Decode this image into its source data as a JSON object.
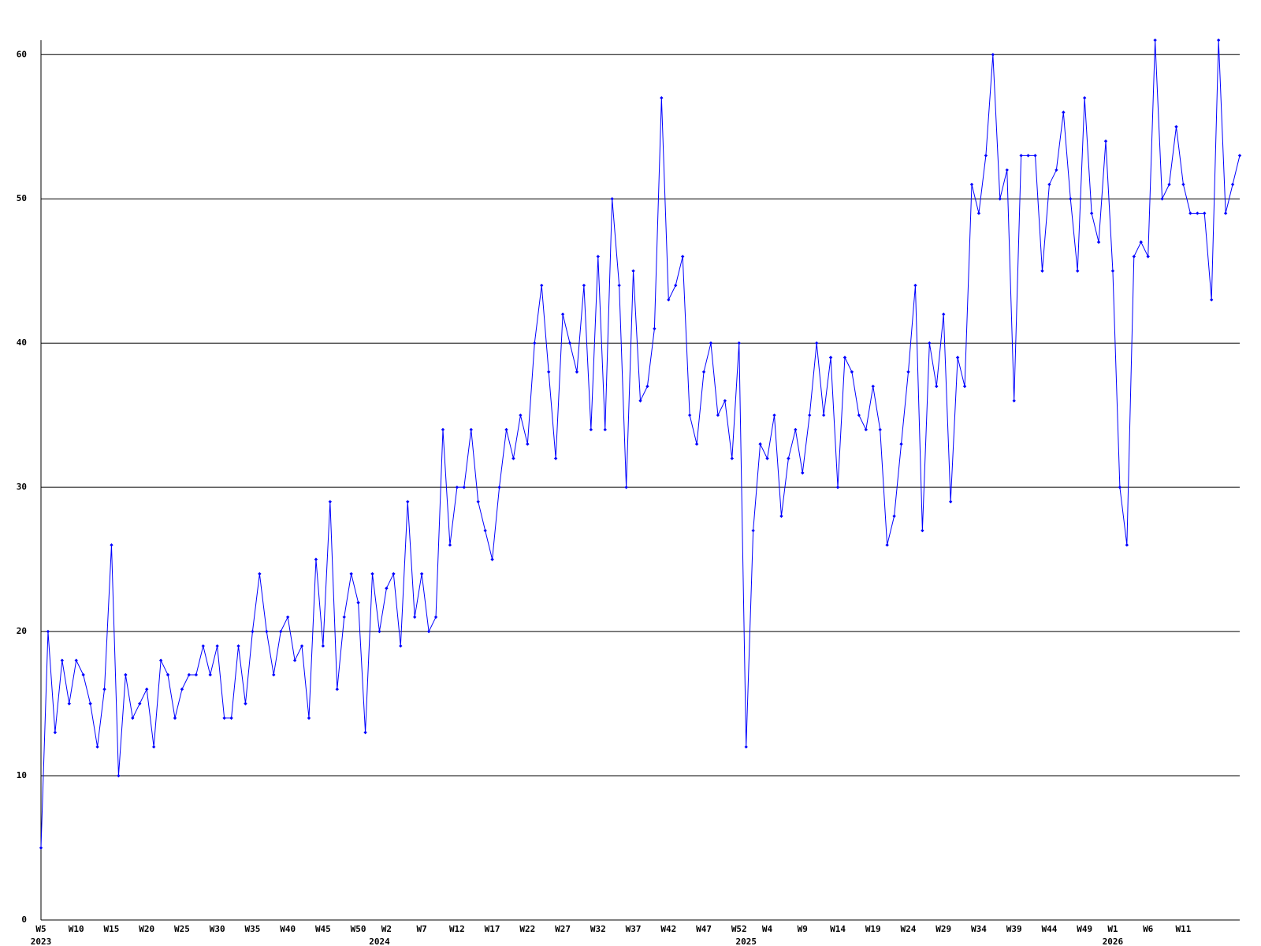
{
  "chart_data": {
    "type": "line",
    "categories": [
      "W5",
      null,
      null,
      null,
      null,
      "W10",
      null,
      null,
      null,
      null,
      "W15",
      null,
      null,
      null,
      null,
      "W20",
      null,
      null,
      null,
      null,
      "W25",
      null,
      null,
      null,
      null,
      "W30",
      null,
      null,
      null,
      null,
      "W35",
      null,
      null,
      null,
      null,
      "W40",
      null,
      null,
      null,
      null,
      "W45",
      null,
      null,
      null,
      null,
      "W50",
      null,
      null,
      null,
      "W2",
      null,
      null,
      null,
      null,
      "W7",
      null,
      null,
      null,
      null,
      "W12",
      null,
      null,
      null,
      null,
      "W17",
      null,
      null,
      null,
      null,
      "W22",
      null,
      null,
      null,
      null,
      "W27",
      null,
      null,
      null,
      null,
      "W32",
      null,
      null,
      null,
      null,
      "W37",
      null,
      null,
      null,
      null,
      "W42",
      null,
      null,
      null,
      null,
      "W47",
      null,
      null,
      null,
      null,
      "W52",
      null,
      null,
      null,
      "W4",
      null,
      null,
      null,
      null,
      "W9",
      null,
      null,
      null,
      null,
      "W14",
      null,
      null,
      null,
      null,
      "W19",
      null,
      null,
      null,
      null,
      "W24",
      null,
      null,
      null,
      null,
      "W29",
      null,
      null,
      null,
      null,
      "W34",
      null,
      null,
      null,
      null,
      "W39",
      null,
      null,
      null,
      null,
      "W44",
      null,
      null,
      null,
      null,
      "W49",
      null,
      null,
      null,
      "W1",
      null,
      null,
      null,
      null,
      "W6",
      null,
      null,
      null,
      null,
      "W11",
      null,
      null,
      null,
      null,
      null,
      null,
      null,
      null
    ],
    "year_labels": [
      {
        "category_index": 0,
        "label": "2023"
      },
      {
        "category_index": 48,
        "label": "2024"
      },
      {
        "category_index": 100,
        "label": "2025"
      },
      {
        "category_index": 152,
        "label": "2026"
      }
    ],
    "series": [
      {
        "color": "#0000ff",
        "values": [
          5,
          20,
          13,
          18,
          15,
          18,
          17,
          15,
          12,
          16,
          26,
          10,
          17,
          14,
          15,
          16,
          12,
          18,
          17,
          14,
          16,
          17,
          17,
          19,
          17,
          19,
          14,
          14,
          19,
          15,
          20,
          24,
          20,
          17,
          20,
          21,
          18,
          19,
          14,
          25,
          19,
          29,
          16,
          21,
          24,
          22,
          13,
          24,
          20,
          23,
          24,
          19,
          29,
          21,
          24,
          20,
          21,
          34,
          26,
          30,
          30,
          34,
          29,
          27,
          25,
          30,
          34,
          32,
          35,
          33,
          40,
          44,
          38,
          32,
          42,
          40,
          38,
          44,
          34,
          46,
          34,
          50,
          44,
          30,
          45,
          36,
          37,
          41,
          57,
          43,
          44,
          46,
          35,
          33,
          38,
          40,
          35,
          36,
          32,
          40,
          12,
          27,
          33,
          32,
          35,
          28,
          32,
          34,
          31,
          35,
          40,
          35,
          39,
          30,
          39,
          38,
          35,
          34,
          37,
          34,
          26,
          28,
          33,
          38,
          44,
          27,
          40,
          37,
          42,
          29,
          39,
          37,
          51,
          49,
          53,
          60,
          50,
          52,
          36,
          53,
          53,
          53,
          45,
          51,
          52,
          56,
          50,
          45,
          57,
          49,
          47,
          54,
          45,
          30,
          26,
          46,
          47,
          46,
          61,
          50,
          51,
          55,
          51,
          49,
          49,
          49,
          43,
          61,
          49,
          51,
          53
        ]
      }
    ],
    "ylim": [
      0,
      61
    ],
    "yticks": [
      0,
      10,
      20,
      30,
      40,
      50,
      60
    ],
    "grid": true
  }
}
